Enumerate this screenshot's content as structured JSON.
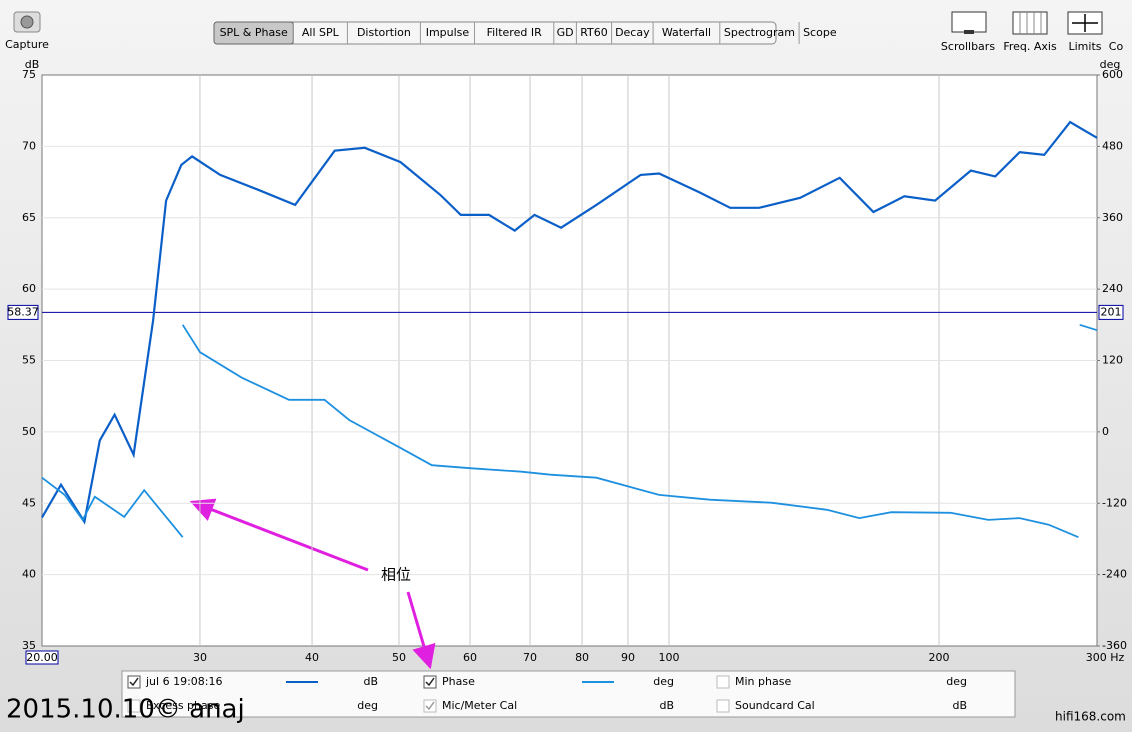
{
  "toolbar": {
    "capture": "Capture",
    "tabs": [
      "SPL & Phase",
      "All SPL",
      "Distortion",
      "Impulse",
      "Filtered IR",
      "GD",
      "RT60",
      "Decay",
      "Waterfall",
      "Spectrogram",
      "Scope"
    ],
    "active_tab": 0,
    "right_buttons": [
      "Scrollbars",
      "Freq. Axis",
      "Limits",
      "Co"
    ]
  },
  "chart_data": {
    "type": "line",
    "x_scale": "log",
    "y_label": "dB",
    "y2_label": "deg",
    "xlim": [
      20,
      300
    ],
    "ylim": [
      35,
      75
    ],
    "y2lim": [
      -360,
      600
    ],
    "xticks": [
      {
        "value": 20,
        "label": "20.00"
      },
      30,
      40,
      50,
      60,
      70,
      80,
      90,
      100,
      200,
      {
        "value": 300,
        "label": "300 Hz"
      }
    ],
    "yticks": [
      35,
      40,
      45,
      50,
      55,
      60,
      65,
      70,
      75
    ],
    "y2ticks": [
      -360,
      -240,
      -120,
      0,
      120,
      240,
      360,
      480,
      600
    ],
    "grid": true,
    "cursor": {
      "y": 58.37,
      "y2": 201
    },
    "annotation": "相位",
    "series": [
      {
        "name": "jul 6 19:08:16",
        "color": "#0a5fc8",
        "unit": "dB",
        "checked": true,
        "x": [
          20.0,
          21.0,
          22.3,
          23.2,
          24.1,
          25.3,
          26.6,
          27.5,
          28.6,
          29.4,
          31.6,
          34.7,
          38.3,
          42.4,
          45.8,
          50.2,
          55.6,
          58.6,
          63.0,
          67.3,
          70.8,
          75.8,
          83.0,
          93.0,
          97.5,
          108,
          117,
          126,
          140,
          155,
          169,
          183,
          198,
          217,
          231,
          246,
          262,
          280,
          300
        ],
        "values": [
          44.0,
          46.3,
          43.7,
          49.4,
          51.2,
          48.4,
          57.8,
          66.2,
          68.7,
          69.3,
          68.0,
          67.0,
          65.9,
          69.7,
          69.9,
          68.9,
          66.6,
          65.2,
          65.2,
          64.1,
          65.2,
          64.3,
          65.9,
          68.0,
          68.1,
          66.8,
          65.7,
          65.7,
          66.4,
          67.8,
          65.4,
          66.5,
          66.2,
          68.3,
          67.9,
          69.6,
          69.4,
          71.7,
          70.6
        ]
      },
      {
        "name": "Phase",
        "color": "#1e90e0",
        "unit": "deg",
        "checked": true,
        "axis": "y2",
        "x": [
          20.0,
          21.2,
          22.2,
          22.9,
          24.7,
          26.0,
          28.7,
          null,
          28.7,
          30.0,
          33.4,
          37.7,
          41.3,
          44.0,
          50.2,
          54.4,
          60.0,
          68.5,
          73.8,
          83.0,
          97.5,
          111,
          130,
          150,
          163,
          177,
          206,
          227,
          246,
          265,
          286,
          null,
          287,
          300
        ],
        "values": [
          -77,
          -106,
          -148,
          -109,
          -143,
          -98,
          -177,
          null,
          180,
          134,
          91,
          54,
          54,
          20,
          -27,
          -56,
          -61,
          -67,
          -72,
          -77,
          -106,
          -114,
          -119,
          -131,
          -145,
          -135,
          -136,
          -148,
          -145,
          -156,
          -177,
          null,
          180,
          171
        ]
      }
    ]
  },
  "legend_panel": {
    "extra": [
      {
        "label": "Min phase",
        "unit": "deg"
      },
      {
        "label": "Excess phase",
        "unit": "deg"
      },
      {
        "label": "Mic/Meter Cal",
        "unit": "dB",
        "checked": true
      },
      {
        "label": "Soundcard Cal",
        "unit": "dB"
      }
    ]
  },
  "watermarks": [
    "2015.10.10© anaj",
    "hifi168.com"
  ]
}
